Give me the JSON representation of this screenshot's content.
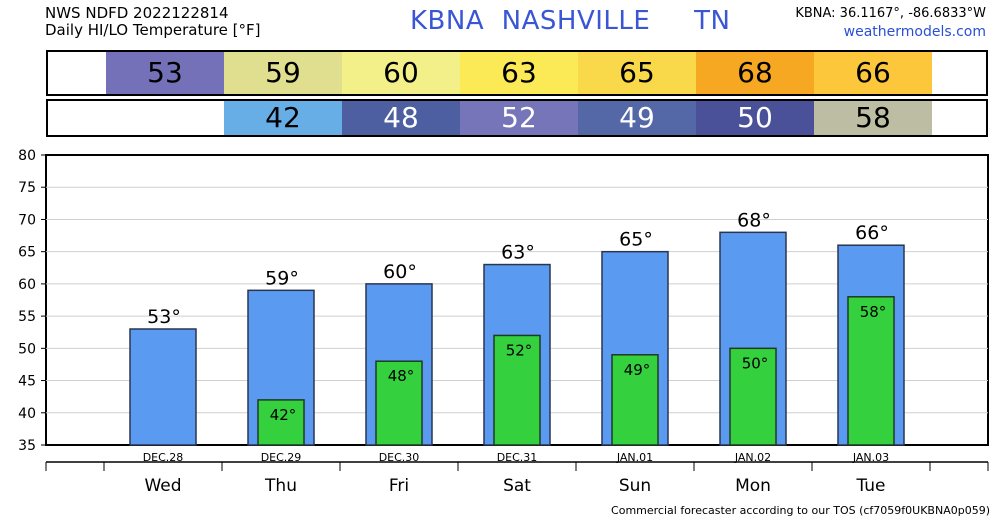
{
  "header": {
    "line1": "NWS NDFD 2022122814",
    "line2": "Daily HI/LO Temperature [°F]",
    "station": "KBNA  NASHVILLE     TN",
    "coords": "KBNA: 36.1167°, -86.6833°W",
    "site": "weathermodels.com"
  },
  "footer": "Commercial forecaster according to our TOS (cf7059f0UKBNA0p059)",
  "colors": {
    "hi_bar": "#5a9af0",
    "lo_bar": "#35d03e",
    "hi_strip": [
      "#7471b8",
      "#e0df8f",
      "#f3f08a",
      "#fbe955",
      "#f9d84a",
      "#f7a823",
      "#fcc73a"
    ],
    "lo_strip": [
      null,
      "#67aee6",
      "#4d5fa0",
      "#7775b9",
      "#5468a8",
      "#4a5198",
      "#bdbda4"
    ],
    "lo_text": [
      null,
      "#000000",
      "#ffffff",
      "#ffffff",
      "#ffffff",
      "#ffffff",
      "#000000"
    ]
  },
  "chart_data": {
    "type": "bar",
    "title": "Daily HI/LO Temperature [°F]",
    "dates": [
      "DEC.28",
      "DEC.29",
      "DEC.30",
      "DEC.31",
      "JAN.01",
      "JAN.02",
      "JAN.03"
    ],
    "days": [
      "Wed",
      "Thu",
      "Fri",
      "Sat",
      "Sun",
      "Mon",
      "Tue"
    ],
    "ylim": [
      35,
      80
    ],
    "yticks": [
      35,
      40,
      45,
      50,
      55,
      60,
      65,
      70,
      75,
      80
    ],
    "grid": true,
    "degree_symbol": "°",
    "series": [
      {
        "values": [
          53,
          59,
          60,
          63,
          65,
          68,
          66
        ]
      },
      {
        "values": [
          null,
          42,
          48,
          52,
          49,
          50,
          58
        ]
      }
    ]
  }
}
